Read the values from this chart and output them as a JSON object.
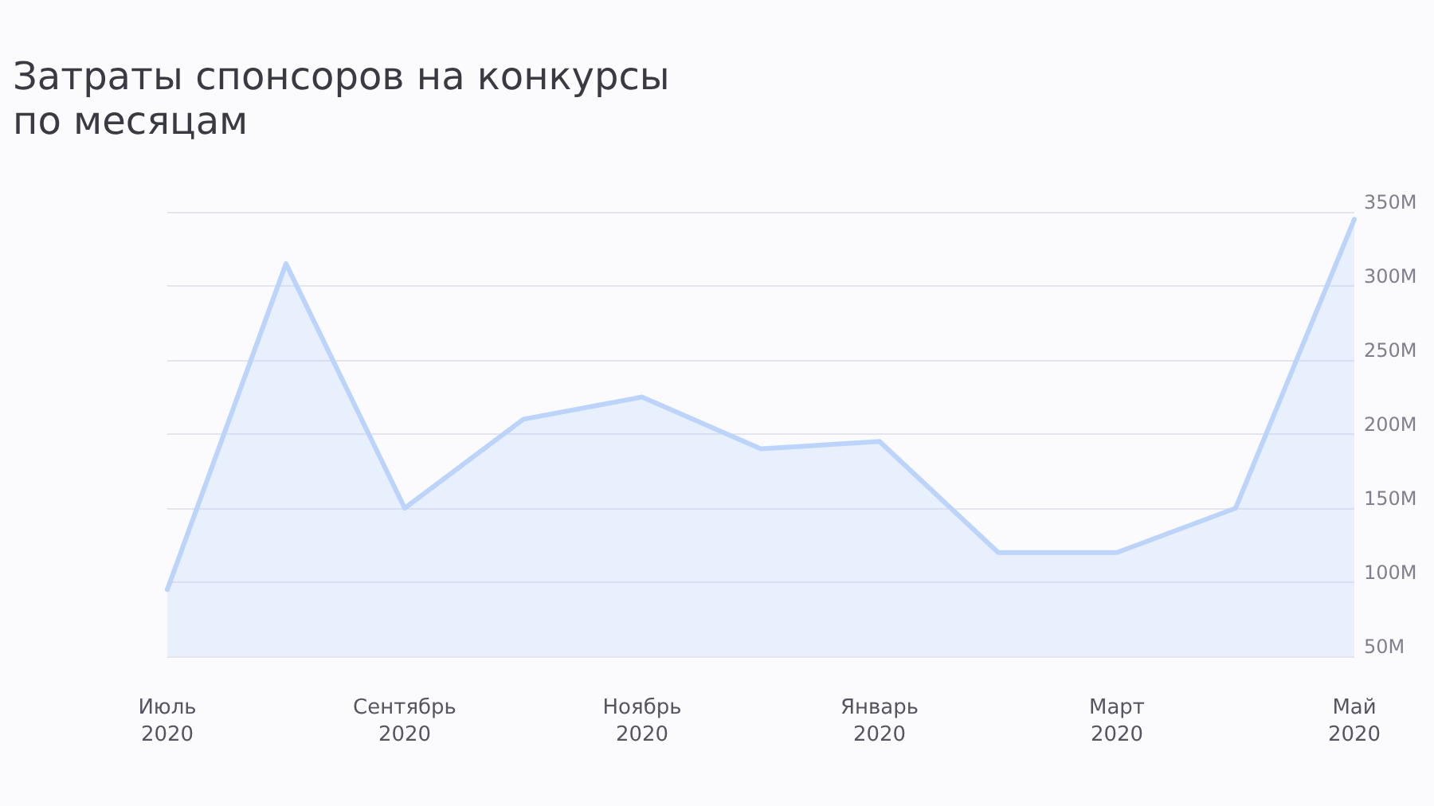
{
  "chart_data": {
    "type": "area",
    "title": "Затраты спонсоров на конкурсы по месяцам",
    "categories": [
      "Июль 2020",
      null,
      "Сентябрь 2020",
      null,
      "Ноябрь 2020",
      null,
      "Январь 2020",
      null,
      "Март 2020",
      null,
      "Май 2020"
    ],
    "series": [
      {
        "color": "#bcd3fa",
        "values": [
          95,
          315,
          150,
          210,
          225,
          190,
          195,
          120,
          120,
          150,
          345
        ]
      }
    ],
    "ylim": [
      50,
      350
    ],
    "yticks": [
      {
        "value": 50,
        "label": "50M"
      },
      {
        "value": 100,
        "label": "100M"
      },
      {
        "value": 150,
        "label": "150M"
      },
      {
        "value": 200,
        "label": "200M"
      },
      {
        "value": 250,
        "label": "250M"
      },
      {
        "value": 300,
        "label": "300M"
      },
      {
        "value": 350,
        "label": "350M"
      }
    ],
    "grid": "y",
    "marker": "none",
    "line_style": "solid"
  }
}
